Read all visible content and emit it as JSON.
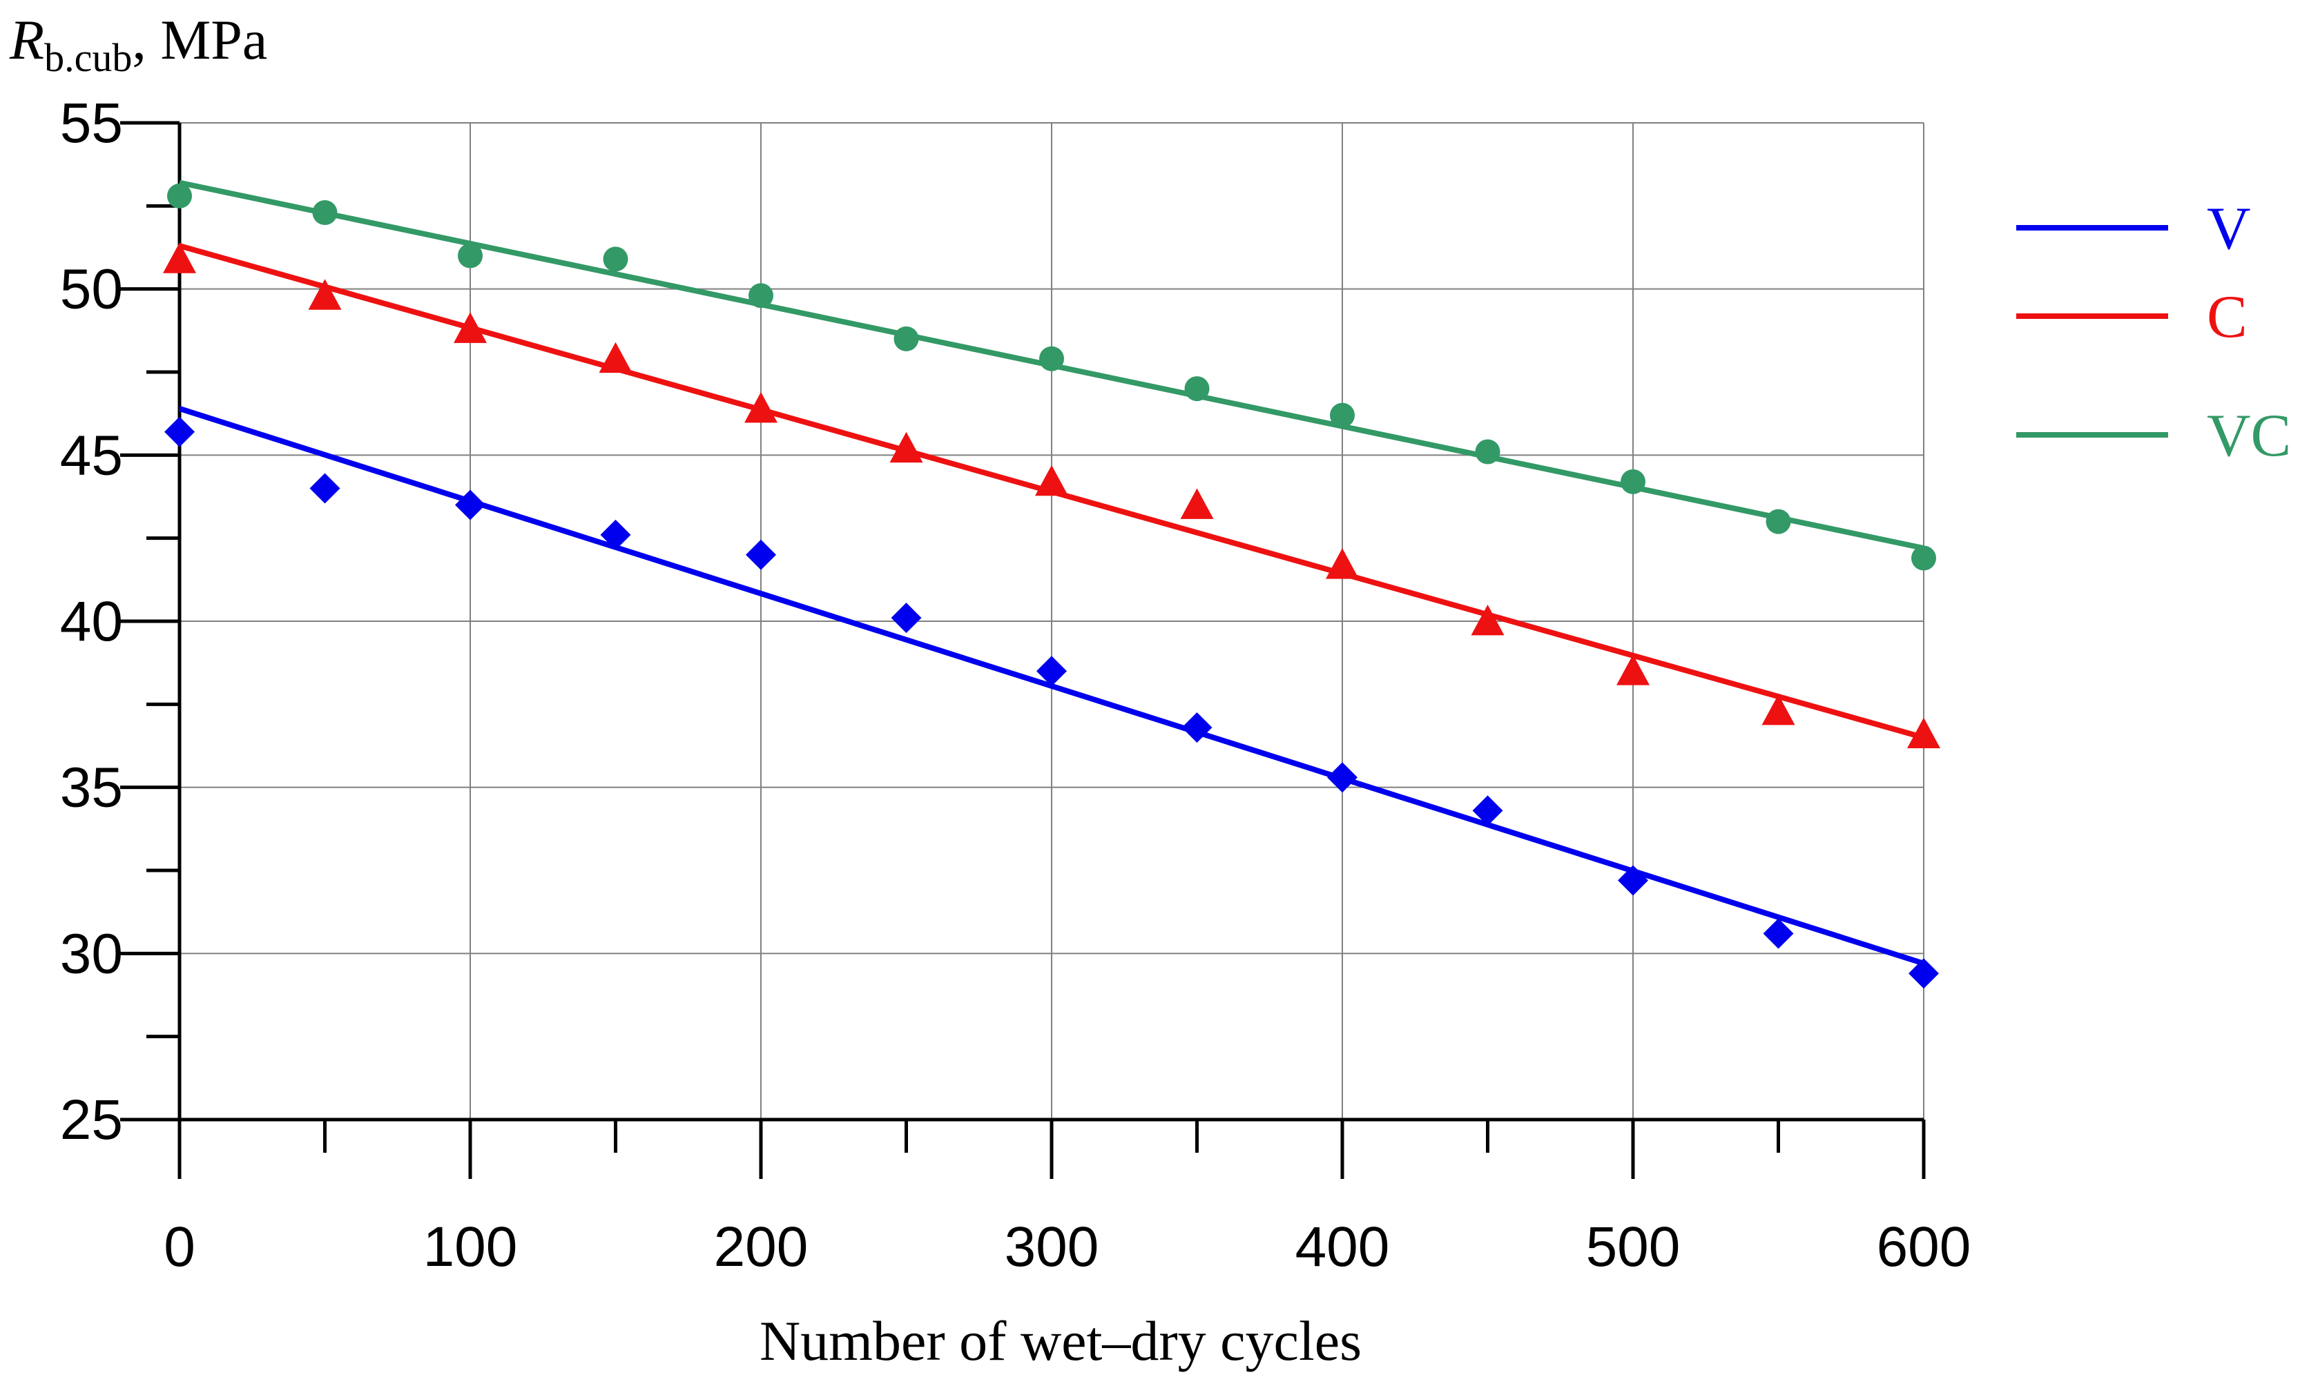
{
  "chart_data": {
    "type": "scatter",
    "title": "",
    "ylabel": {
      "symbol": "R",
      "subscript": "b.cub",
      "unit": ", MPa"
    },
    "xlabel": "Number of wet–dry cycles",
    "xlim": [
      0,
      600
    ],
    "ylim": [
      25,
      55
    ],
    "x_major_ticks": [
      0,
      100,
      200,
      300,
      400,
      500,
      600
    ],
    "x_minor_ticks": [
      50,
      150,
      250,
      350,
      450,
      550
    ],
    "y_major_ticks": [
      25,
      30,
      35,
      40,
      45,
      50,
      55
    ],
    "y_minor_ticks": [
      27.5,
      32.5,
      37.5,
      42.5,
      47.5,
      52.5
    ],
    "x_tick_labels": [
      "0",
      "100",
      "200",
      "300",
      "400",
      "500",
      "600"
    ],
    "y_tick_labels": [
      "25",
      "30",
      "35",
      "40",
      "45",
      "50",
      "55"
    ],
    "grid": true,
    "legend_position": "right",
    "x": [
      0,
      50,
      100,
      150,
      200,
      250,
      300,
      350,
      400,
      450,
      500,
      550,
      600
    ],
    "series": [
      {
        "name": "V",
        "color": "#0000ee",
        "marker": "diamond",
        "values": [
          45.7,
          44.0,
          43.5,
          42.6,
          42.0,
          40.1,
          38.5,
          36.8,
          35.3,
          34.3,
          32.2,
          30.6,
          29.4
        ],
        "trend": [
          46.4,
          29.7
        ]
      },
      {
        "name": "C",
        "color": "#ee1111",
        "marker": "triangle",
        "values": [
          50.9,
          49.8,
          48.8,
          47.9,
          46.4,
          45.2,
          44.2,
          43.5,
          41.7,
          40.0,
          38.5,
          37.3,
          36.6
        ],
        "trend": [
          51.3,
          36.5
        ]
      },
      {
        "name": "VC",
        "color": "#339966",
        "marker": "circle",
        "values": [
          52.8,
          52.3,
          51.0,
          50.9,
          49.8,
          48.5,
          47.9,
          47.0,
          46.2,
          45.1,
          44.2,
          43.0,
          41.9
        ],
        "trend": [
          53.2,
          42.2
        ]
      }
    ]
  }
}
